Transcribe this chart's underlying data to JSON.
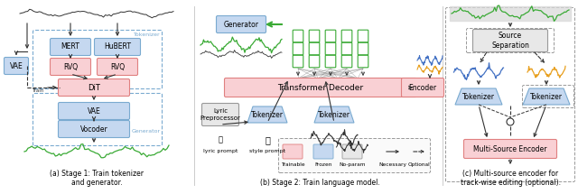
{
  "fig_width": 6.4,
  "fig_height": 2.15,
  "dpi": 100,
  "background": "#ffffff",
  "colors": {
    "trainable_fc": "#f9d0d4",
    "trainable_ec": "#e08080",
    "frozen_fc": "#c5d8f0",
    "frozen_ec": "#7aaad0",
    "noparam_fc": "#e8e8e8",
    "noparam_ec": "#999999",
    "green": "#3aaa35",
    "blue_wave": "#4472c4",
    "orange_wave": "#e8a020",
    "dark": "#333333",
    "divider": "#cccccc",
    "dashed_border": "#7aaad0",
    "gray_border": "#999999"
  },
  "captions": {
    "a": "(a) Stage 1: Train tokenizer\nand generator.",
    "b": "(b) Stage 2: Train language model.",
    "c": "(c) Multi-source encoder for\ntrack-wise editing (optional)."
  }
}
